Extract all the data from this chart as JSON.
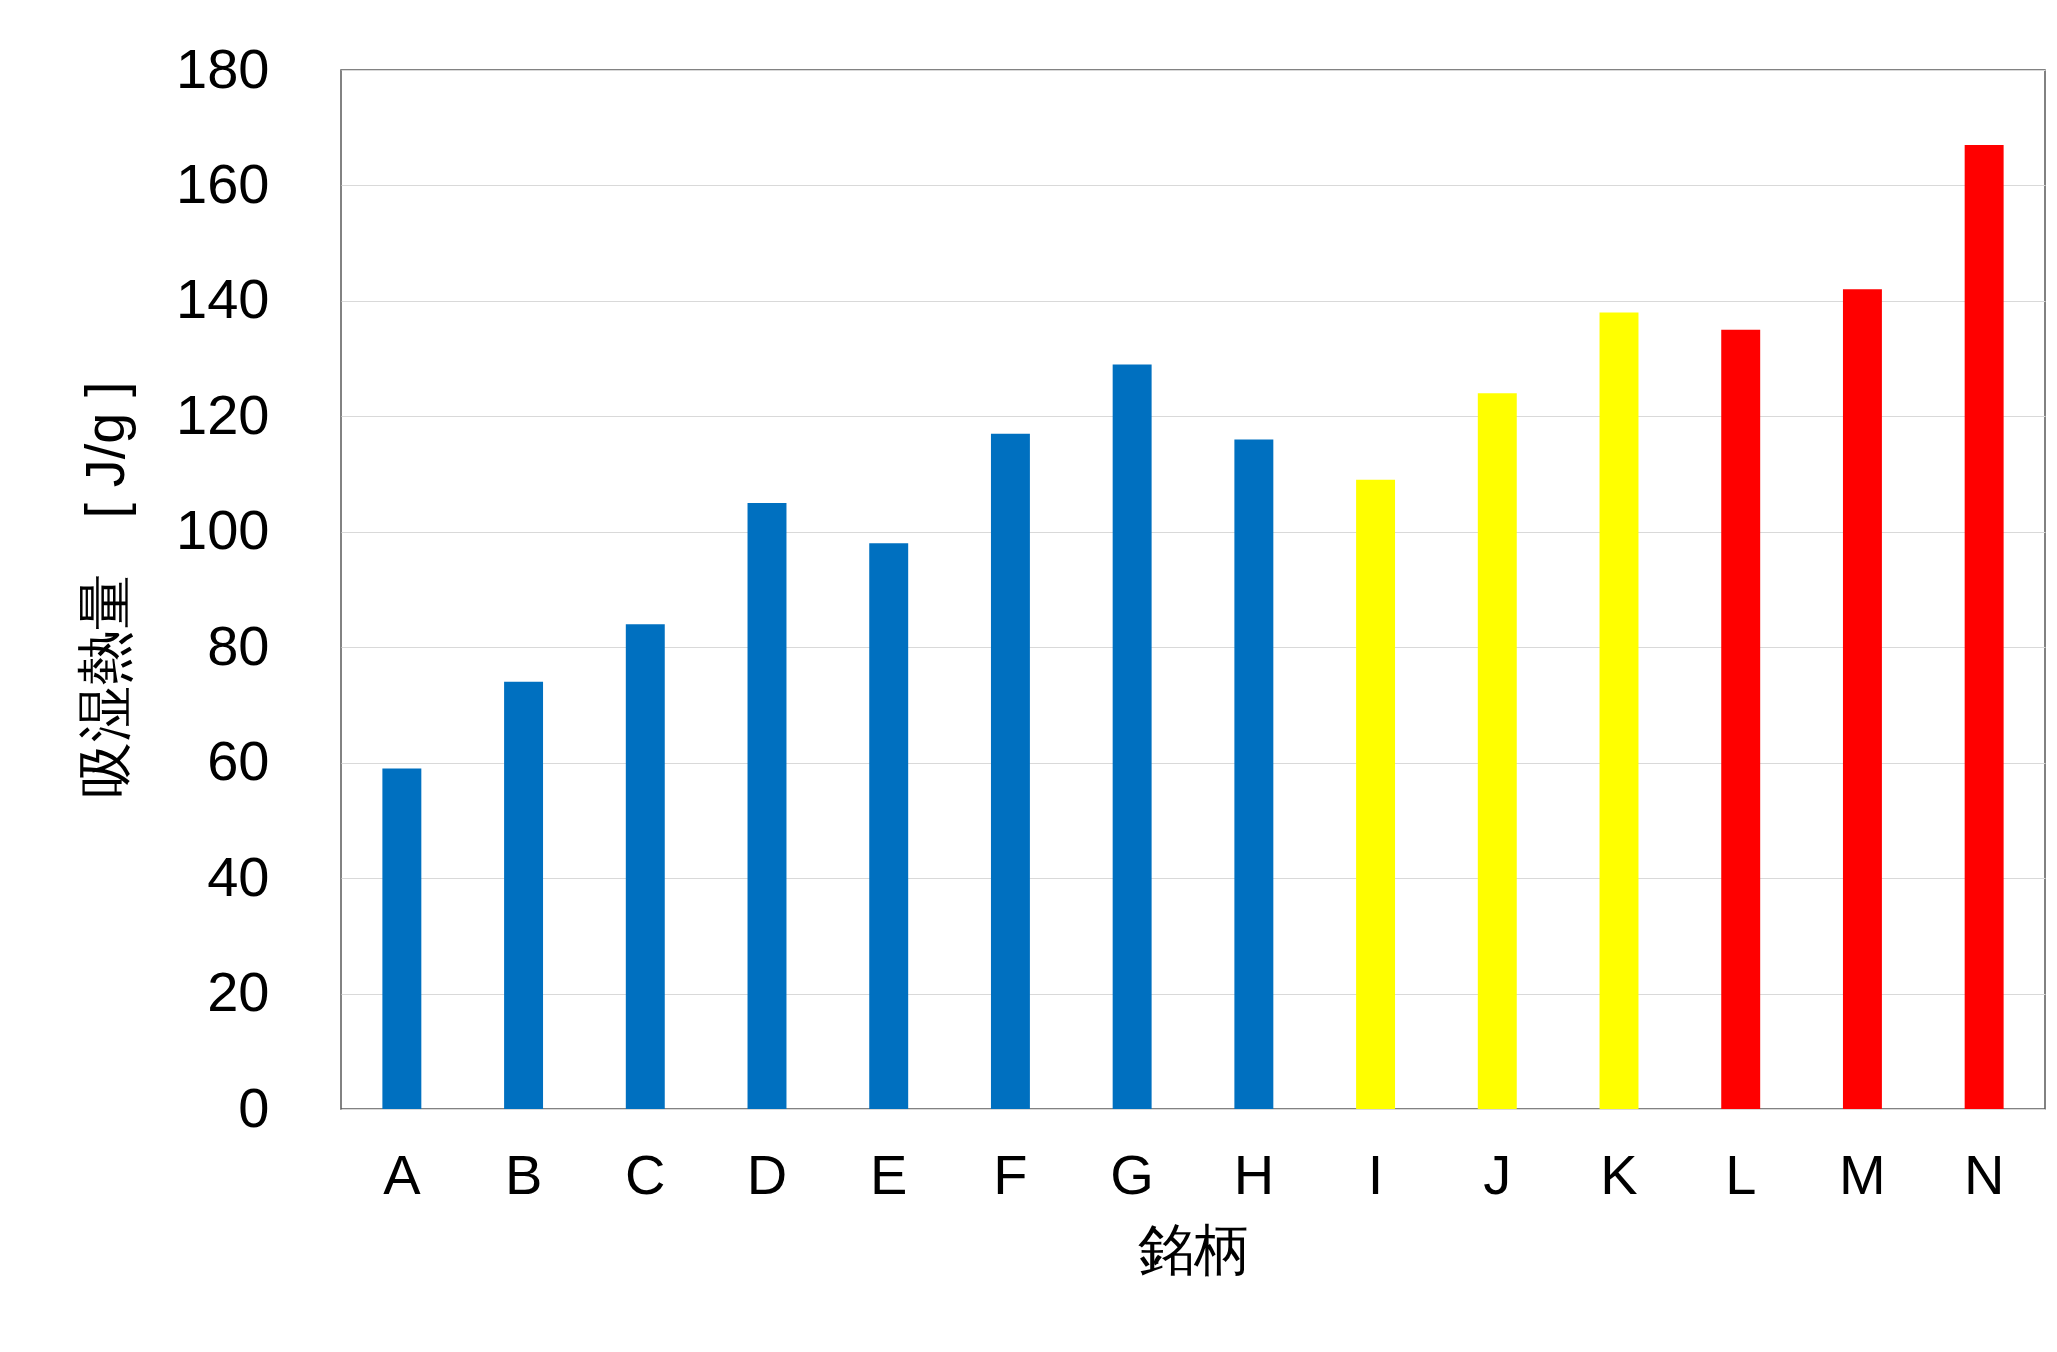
{
  "chart_data": {
    "type": "bar",
    "xlabel": "銘柄",
    "ylabel": "吸湿熱量　[ J/g ]",
    "categories": [
      "A",
      "B",
      "C",
      "D",
      "E",
      "F",
      "G",
      "H",
      "I",
      "J",
      "K",
      "L",
      "M",
      "N"
    ],
    "values": [
      59,
      74,
      84,
      105,
      98,
      117,
      129,
      116,
      109,
      124,
      138,
      135,
      142,
      167
    ],
    "colors": [
      "#0070c0",
      "#0070c0",
      "#0070c0",
      "#0070c0",
      "#0070c0",
      "#0070c0",
      "#0070c0",
      "#0070c0",
      "#ffff00",
      "#ffff00",
      "#ffff00",
      "#ff0000",
      "#ff0000",
      "#ff0000"
    ],
    "ylim": [
      0,
      180
    ],
    "yticks": [
      0,
      20,
      40,
      60,
      80,
      100,
      120,
      140,
      160,
      180
    ],
    "grid": "y"
  }
}
